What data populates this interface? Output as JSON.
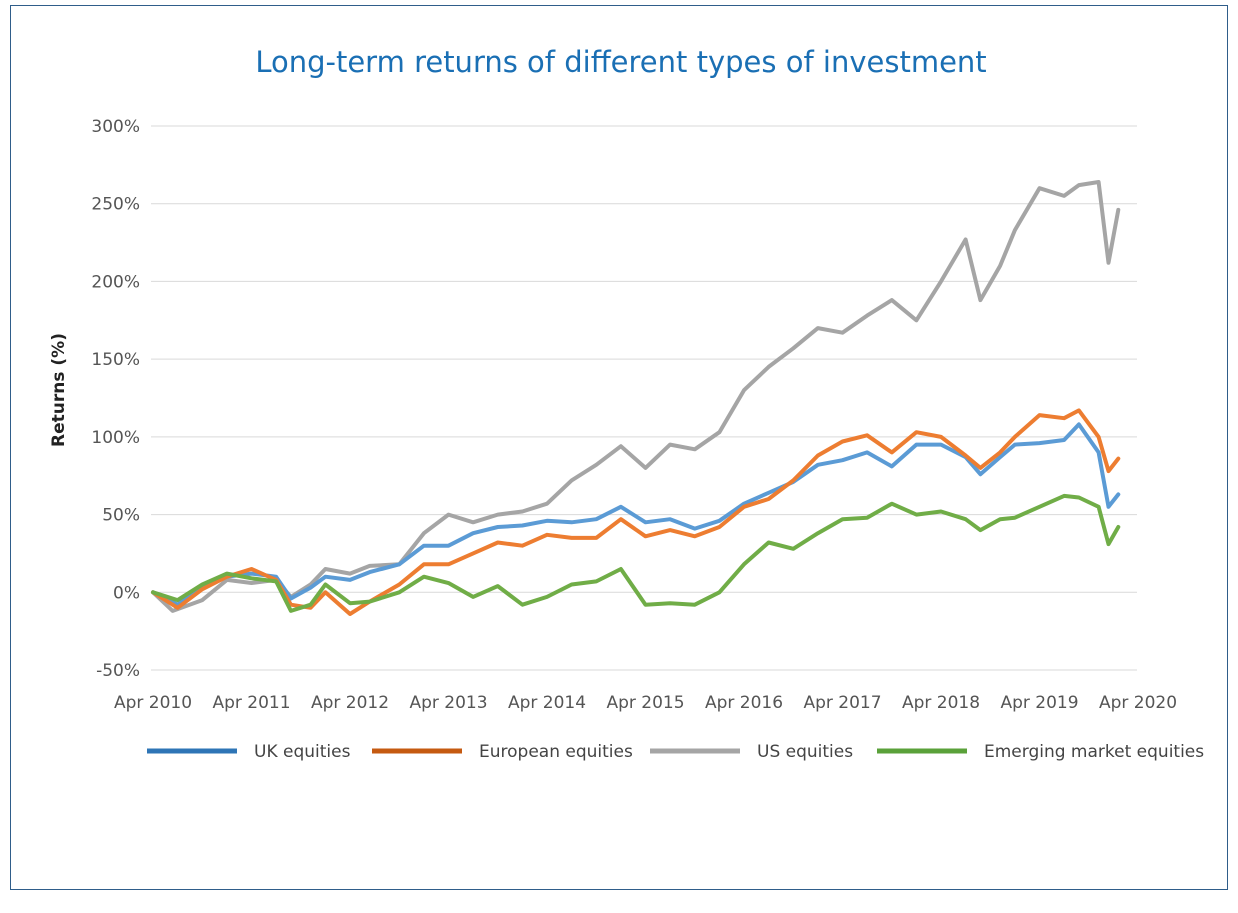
{
  "chart_data": {
    "type": "line",
    "title": "Long-term returns of different types of investment",
    "ylabel": "Returns (%)",
    "xlabel": "",
    "ylim": [
      -50,
      300
    ],
    "yticks": [
      -50,
      0,
      50,
      100,
      150,
      200,
      250,
      300
    ],
    "ytick_labels": [
      "-50%",
      "0%",
      "50%",
      "100%",
      "150%",
      "200%",
      "250%",
      "300%"
    ],
    "xlim": [
      2010,
      2020.25
    ],
    "xticks": [
      2010,
      2011,
      2012,
      2013,
      2014,
      2015,
      2016,
      2017,
      2018,
      2019,
      2020
    ],
    "xtick_labels": [
      "Apr 2010",
      "Apr 2011",
      "Apr 2012",
      "Apr 2013",
      "Apr 2014",
      "Apr 2015",
      "Apr 2016",
      "Apr 2017",
      "Apr 2018",
      "Apr 2019",
      "Apr 2020"
    ],
    "grid": true,
    "legend_position": "bottom",
    "series": [
      {
        "name": "UK equities",
        "color": "#5b9bd5",
        "legend_color": "#2e75b6",
        "points": [
          [
            2010,
            0
          ],
          [
            2010.25,
            -8
          ],
          [
            2010.5,
            3
          ],
          [
            2010.75,
            10
          ],
          [
            2011,
            12
          ],
          [
            2011.25,
            10
          ],
          [
            2011.4,
            -4
          ],
          [
            2011.6,
            3
          ],
          [
            2011.75,
            10
          ],
          [
            2012,
            8
          ],
          [
            2012.2,
            13
          ],
          [
            2012.5,
            18
          ],
          [
            2012.75,
            30
          ],
          [
            2013,
            30
          ],
          [
            2013.25,
            38
          ],
          [
            2013.5,
            42
          ],
          [
            2013.75,
            43
          ],
          [
            2014,
            46
          ],
          [
            2014.25,
            45
          ],
          [
            2014.5,
            47
          ],
          [
            2014.75,
            55
          ],
          [
            2015,
            45
          ],
          [
            2015.25,
            47
          ],
          [
            2015.5,
            41
          ],
          [
            2015.75,
            46
          ],
          [
            2016,
            57
          ],
          [
            2016.25,
            64
          ],
          [
            2016.5,
            71
          ],
          [
            2016.75,
            82
          ],
          [
            2017,
            85
          ],
          [
            2017.25,
            90
          ],
          [
            2017.5,
            81
          ],
          [
            2017.75,
            95
          ],
          [
            2018,
            95
          ],
          [
            2018.25,
            87
          ],
          [
            2018.4,
            76
          ],
          [
            2018.6,
            87
          ],
          [
            2018.75,
            95
          ],
          [
            2019,
            96
          ],
          [
            2019.25,
            98
          ],
          [
            2019.4,
            108
          ],
          [
            2019.6,
            90
          ],
          [
            2019.7,
            55
          ],
          [
            2019.8,
            63
          ]
        ]
      },
      {
        "name": "European equities",
        "color": "#ed7d31",
        "legend_color": "#c55a11",
        "points": [
          [
            2010,
            0
          ],
          [
            2010.25,
            -10
          ],
          [
            2010.5,
            2
          ],
          [
            2010.75,
            10
          ],
          [
            2011,
            15
          ],
          [
            2011.25,
            8
          ],
          [
            2011.4,
            -8
          ],
          [
            2011.6,
            -10
          ],
          [
            2011.75,
            0
          ],
          [
            2012,
            -14
          ],
          [
            2012.2,
            -6
          ],
          [
            2012.5,
            5
          ],
          [
            2012.75,
            18
          ],
          [
            2013,
            18
          ],
          [
            2013.25,
            25
          ],
          [
            2013.5,
            32
          ],
          [
            2013.75,
            30
          ],
          [
            2014,
            37
          ],
          [
            2014.25,
            35
          ],
          [
            2014.5,
            35
          ],
          [
            2014.75,
            47
          ],
          [
            2015,
            36
          ],
          [
            2015.25,
            40
          ],
          [
            2015.5,
            36
          ],
          [
            2015.75,
            42
          ],
          [
            2016,
            55
          ],
          [
            2016.25,
            60
          ],
          [
            2016.5,
            72
          ],
          [
            2016.75,
            88
          ],
          [
            2017,
            97
          ],
          [
            2017.25,
            101
          ],
          [
            2017.5,
            90
          ],
          [
            2017.75,
            103
          ],
          [
            2018,
            100
          ],
          [
            2018.25,
            88
          ],
          [
            2018.4,
            80
          ],
          [
            2018.6,
            90
          ],
          [
            2018.75,
            100
          ],
          [
            2019,
            114
          ],
          [
            2019.25,
            112
          ],
          [
            2019.4,
            117
          ],
          [
            2019.6,
            100
          ],
          [
            2019.7,
            78
          ],
          [
            2019.8,
            86
          ]
        ]
      },
      {
        "name": "US equities",
        "color": "#a5a5a5",
        "legend_color": "#a5a5a5",
        "points": [
          [
            2010,
            0
          ],
          [
            2010.2,
            -12
          ],
          [
            2010.5,
            -5
          ],
          [
            2010.75,
            8
          ],
          [
            2011,
            6
          ],
          [
            2011.25,
            8
          ],
          [
            2011.4,
            -3
          ],
          [
            2011.6,
            5
          ],
          [
            2011.75,
            15
          ],
          [
            2012,
            12
          ],
          [
            2012.2,
            17
          ],
          [
            2012.5,
            18
          ],
          [
            2012.75,
            38
          ],
          [
            2013,
            50
          ],
          [
            2013.25,
            45
          ],
          [
            2013.5,
            50
          ],
          [
            2013.75,
            52
          ],
          [
            2014,
            57
          ],
          [
            2014.25,
            72
          ],
          [
            2014.5,
            82
          ],
          [
            2014.75,
            94
          ],
          [
            2015,
            80
          ],
          [
            2015.25,
            95
          ],
          [
            2015.5,
            92
          ],
          [
            2015.75,
            103
          ],
          [
            2016,
            130
          ],
          [
            2016.25,
            145
          ],
          [
            2016.5,
            157
          ],
          [
            2016.75,
            170
          ],
          [
            2017,
            167
          ],
          [
            2017.25,
            178
          ],
          [
            2017.5,
            188
          ],
          [
            2017.75,
            175
          ],
          [
            2018,
            200
          ],
          [
            2018.25,
            227
          ],
          [
            2018.4,
            188
          ],
          [
            2018.6,
            210
          ],
          [
            2018.75,
            233
          ],
          [
            2019,
            260
          ],
          [
            2019.25,
            255
          ],
          [
            2019.4,
            262
          ],
          [
            2019.6,
            264
          ],
          [
            2019.7,
            212
          ],
          [
            2019.8,
            246
          ]
        ]
      },
      {
        "name": "Emerging market equities",
        "color": "#70ad47",
        "legend_color": "#5aa13a",
        "points": [
          [
            2010,
            0
          ],
          [
            2010.25,
            -5
          ],
          [
            2010.5,
            5
          ],
          [
            2010.75,
            12
          ],
          [
            2011,
            9
          ],
          [
            2011.25,
            7
          ],
          [
            2011.4,
            -12
          ],
          [
            2011.6,
            -8
          ],
          [
            2011.75,
            5
          ],
          [
            2012,
            -7
          ],
          [
            2012.2,
            -6
          ],
          [
            2012.5,
            0
          ],
          [
            2012.75,
            10
          ],
          [
            2013,
            6
          ],
          [
            2013.25,
            -3
          ],
          [
            2013.5,
            4
          ],
          [
            2013.75,
            -8
          ],
          [
            2014,
            -3
          ],
          [
            2014.25,
            5
          ],
          [
            2014.5,
            7
          ],
          [
            2014.75,
            15
          ],
          [
            2015,
            -8
          ],
          [
            2015.25,
            -7
          ],
          [
            2015.5,
            -8
          ],
          [
            2015.75,
            0
          ],
          [
            2016,
            18
          ],
          [
            2016.25,
            32
          ],
          [
            2016.5,
            28
          ],
          [
            2016.75,
            38
          ],
          [
            2017,
            47
          ],
          [
            2017.25,
            48
          ],
          [
            2017.5,
            57
          ],
          [
            2017.75,
            50
          ],
          [
            2018,
            52
          ],
          [
            2018.25,
            47
          ],
          [
            2018.4,
            40
          ],
          [
            2018.6,
            47
          ],
          [
            2018.75,
            48
          ],
          [
            2019,
            55
          ],
          [
            2019.25,
            62
          ],
          [
            2019.4,
            61
          ],
          [
            2019.6,
            55
          ],
          [
            2019.7,
            31
          ],
          [
            2019.8,
            42
          ]
        ]
      }
    ]
  }
}
